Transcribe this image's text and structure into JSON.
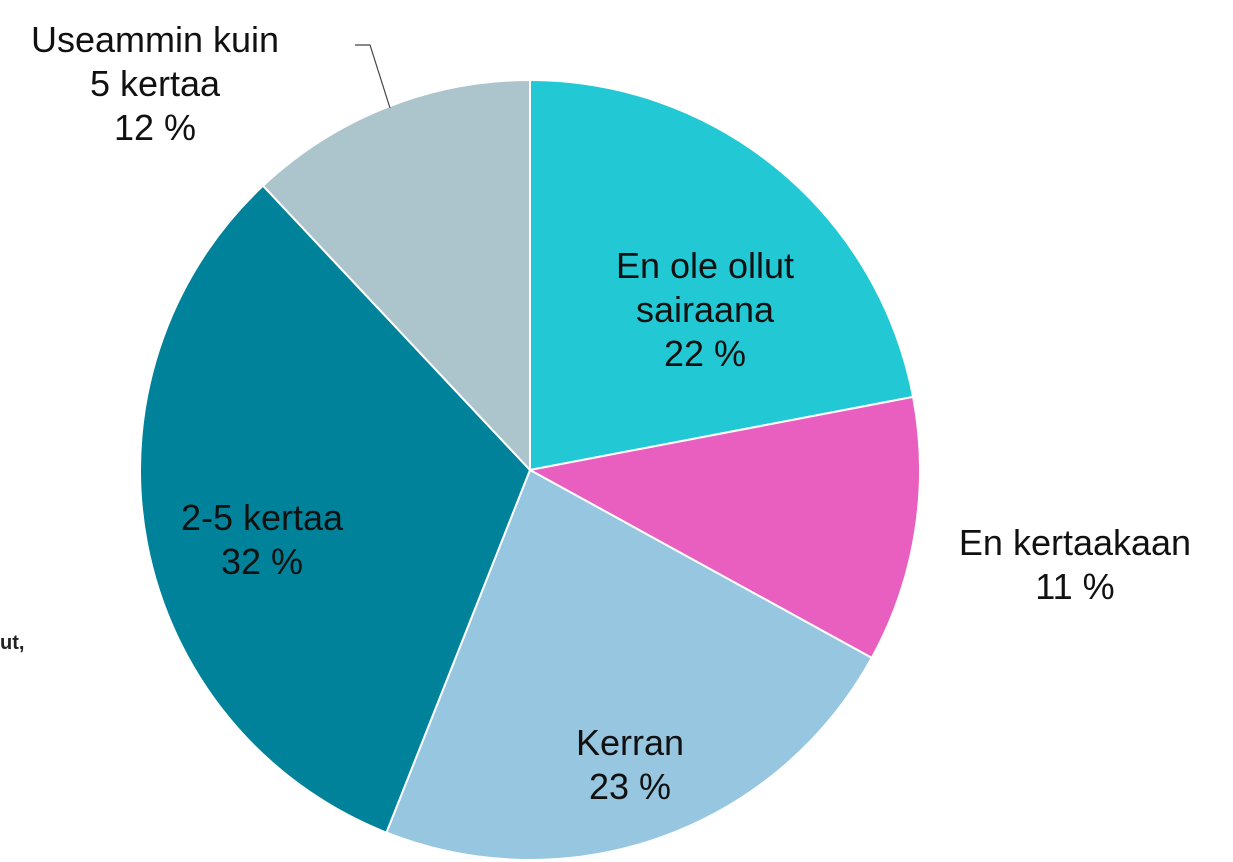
{
  "chart_data": {
    "type": "pie",
    "categories": [
      "En ole ollut sairaana",
      "En kertaakaan",
      "Kerran",
      "2-5 kertaa",
      "Useammin kuin 5 kertaa"
    ],
    "values": [
      22,
      11,
      23,
      32,
      12
    ],
    "value_labels": [
      "22 %",
      "11 %",
      "23 %",
      "32 %",
      "12 %"
    ],
    "colors": [
      "#22c9d4",
      "#e85fbf",
      "#97c6e0",
      "#00839a",
      "#acc4cc"
    ],
    "side_note": "ut,"
  }
}
